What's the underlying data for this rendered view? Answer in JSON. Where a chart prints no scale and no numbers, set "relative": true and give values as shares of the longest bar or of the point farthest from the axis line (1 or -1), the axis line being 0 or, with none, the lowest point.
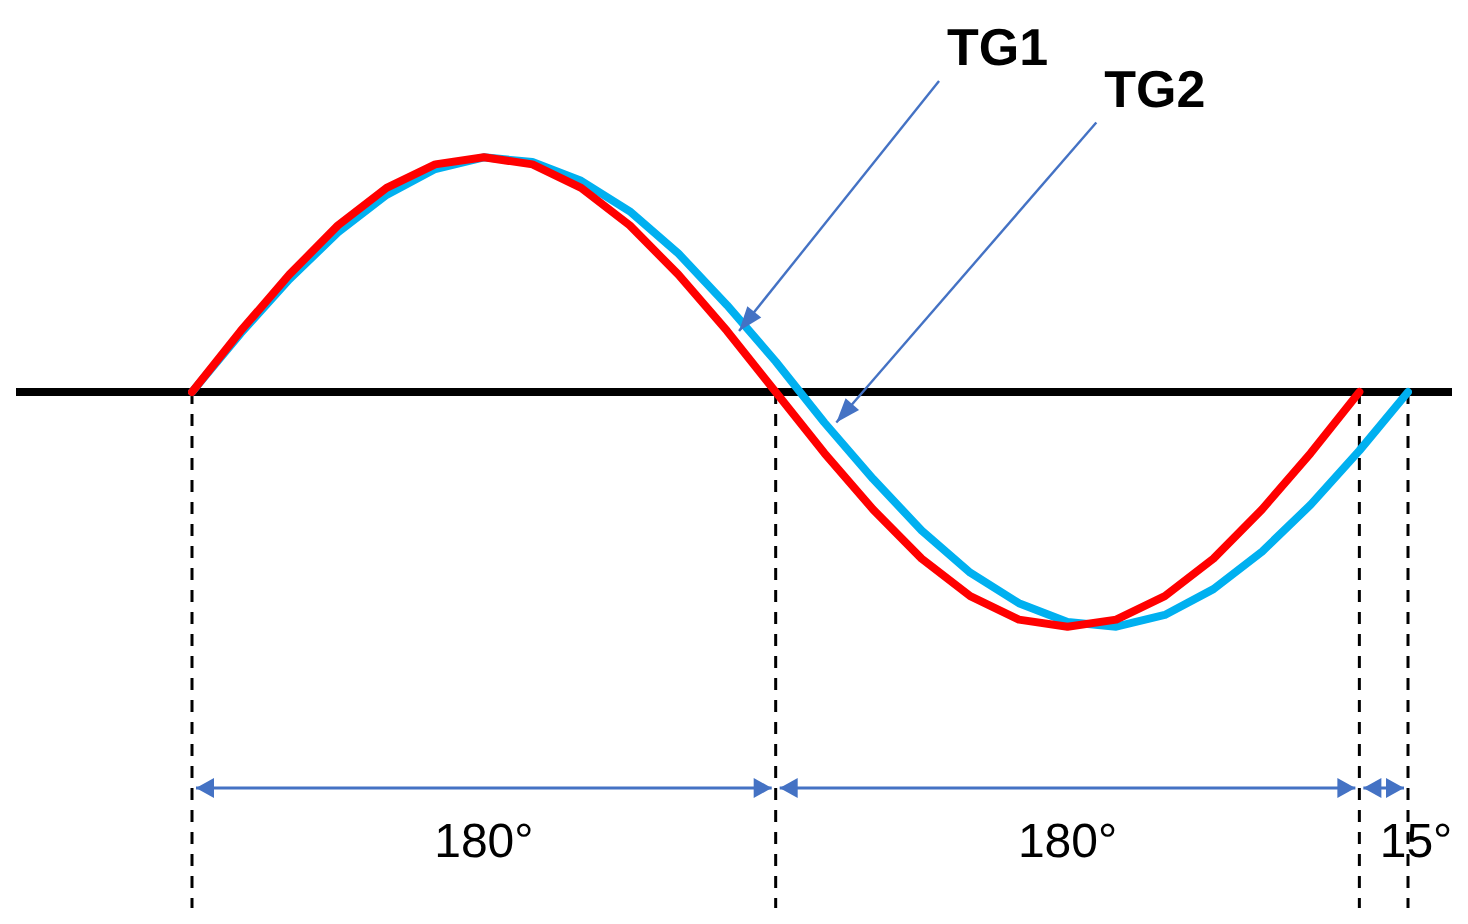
{
  "chart_data": {
    "type": "line",
    "relative": true,
    "grid": "x",
    "marker": "none",
    "line_style": "solid",
    "categories": [
      null,
      null,
      null,
      null,
      null,
      null,
      null,
      null,
      null,
      null,
      null,
      null,
      null,
      null,
      null,
      null,
      null,
      null,
      null,
      null,
      null,
      null,
      null,
      null,
      null,
      null
    ],
    "series": [
      {
        "name": "TG1",
        "color": "#ff0000",
        "values": [
          0,
          0.26,
          0.5,
          0.71,
          0.87,
          0.97,
          1,
          0.97,
          0.87,
          0.71,
          0.5,
          0.26,
          0,
          -0.26,
          -0.5,
          -0.71,
          -0.87,
          -0.97,
          -1,
          -0.97,
          -0.87,
          -0.71,
          -0.5,
          -0.26,
          0,
          null
        ]
      },
      {
        "name": "TG2",
        "color": "#00b0f0",
        "values": [
          0,
          0.25,
          0.48,
          0.68,
          0.84,
          0.95,
          1,
          0.98,
          0.9,
          0.77,
          0.59,
          0.37,
          0.13,
          -0.13,
          -0.37,
          -0.59,
          -0.77,
          -0.9,
          -0.98,
          -1,
          -0.95,
          -0.84,
          -0.68,
          -0.48,
          -0.25,
          0
        ]
      }
    ],
    "annotations": [
      "180°",
      "180°",
      "15°"
    ]
  }
}
